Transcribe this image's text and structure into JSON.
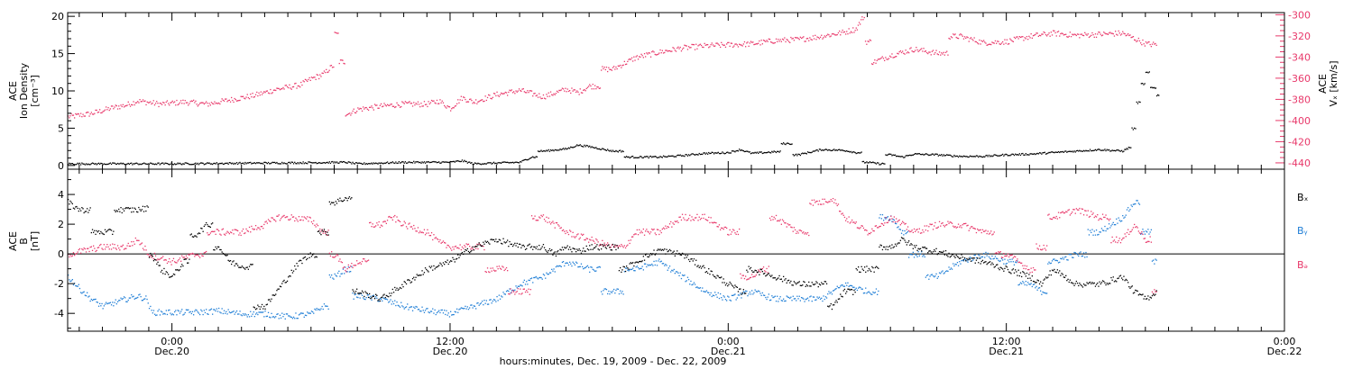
{
  "chart_data": [
    {
      "type": "scatter",
      "panel": "plasma",
      "ylabel_lines": [
        "ACE",
        "Ion Density",
        "[cm⁻³]"
      ],
      "y2label_lines": [
        "ACE",
        "Vₓ [km/s]"
      ],
      "ylim": [
        -0.5,
        20.5
      ],
      "yticks": [
        0,
        5,
        10,
        15,
        20
      ],
      "y2lim": [
        -446,
        -298
      ],
      "y2ticks": [
        -300,
        -320,
        -340,
        -360,
        -380,
        -400,
        -420,
        -440
      ],
      "x_unit": "hours since 00:00 Dec.19, 2009",
      "xlim": [
        19.5,
        72
      ],
      "series": [
        {
          "axis": "left",
          "color": "#000000",
          "x": [
            19.5,
            22,
            24,
            26,
            28,
            30,
            31.5,
            32,
            34,
            36,
            36.5,
            37,
            38,
            39,
            39.5,
            40,
            41,
            41.5,
            42,
            43,
            44,
            45,
            46,
            47,
            48,
            48.5,
            49,
            50,
            50.5,
            51,
            52,
            53,
            53.5,
            54,
            54.5,
            55,
            55.5,
            56,
            57,
            58,
            59,
            60,
            61,
            62,
            63,
            64,
            65,
            65.3,
            65.5,
            65.7,
            65.9,
            66.1,
            66.3,
            66.6
          ],
          "y": [
            0.3,
            0.3,
            0.3,
            0.35,
            0.4,
            0.45,
            0.5,
            0.3,
            0.5,
            0.5,
            0.7,
            0.3,
            0.4,
            0.5,
            1.2,
            2,
            2.3,
            2.8,
            2.6,
            2,
            1.2,
            1.2,
            1.4,
            1.7,
            1.8,
            2.2,
            1.7,
            1.9,
            3,
            1.5,
            2.2,
            2.1,
            1.8,
            0.5,
            0.3,
            1.5,
            1.2,
            1.6,
            1.5,
            1.3,
            1.3,
            1.5,
            1.6,
            1.8,
            2.0,
            2.2,
            2.0,
            2.5,
            5,
            8.5,
            11,
            12.5,
            10.5,
            9.5
          ]
        },
        {
          "axis": "right",
          "color": "#e8386a",
          "x": [
            19.5,
            20.5,
            21.5,
            22,
            22.5,
            23.5,
            24.5,
            25.5,
            26.5,
            27.5,
            28.5,
            29.5,
            30,
            30.5,
            30.9,
            31.1,
            31.3,
            31.6,
            32,
            33,
            34,
            35,
            35.5,
            36,
            36.5,
            37,
            38,
            39,
            39.5,
            40,
            41,
            41.5,
            42,
            43,
            44,
            45,
            46,
            47,
            48,
            49,
            50,
            51,
            52,
            53,
            53.5,
            53.8,
            54,
            54.3,
            55,
            56,
            57,
            58,
            59,
            60,
            61,
            62,
            63,
            64,
            65,
            65.5,
            66,
            66.5
          ],
          "y": [
            -396,
            -393,
            -387,
            -385,
            -381,
            -384,
            -382,
            -384,
            -380,
            -376,
            -370,
            -366,
            -360,
            -356,
            -348,
            -318,
            -344,
            -393,
            -389,
            -386,
            -384,
            -384,
            -381,
            -388,
            -378,
            -382,
            -375,
            -371,
            -374,
            -377,
            -370,
            -373,
            -367,
            -351,
            -340,
            -335,
            -331,
            -329,
            -328,
            -327,
            -324,
            -323,
            -320,
            -316,
            -313,
            -302,
            -325,
            -344,
            -338,
            -332,
            -336,
            -320,
            -326,
            -325,
            -320,
            -317,
            -319,
            -318,
            -317,
            -322,
            -327,
            -328
          ]
        }
      ]
    },
    {
      "type": "scatter",
      "panel": "magnetic-field",
      "ylabel_lines": [
        "ACE",
        "B",
        "[nT]"
      ],
      "ylim": [
        -5.2,
        5.7
      ],
      "yticks": [
        -4,
        -2,
        0,
        2,
        4
      ],
      "zero_line": 0,
      "x_unit": "hours since 00:00 Dec.19, 2009",
      "xlim": [
        19.5,
        72
      ],
      "series": [
        {
          "name": "Bₓ",
          "color": "#000000",
          "x": [
            19.5,
            20,
            21,
            22,
            22.5,
            22.9,
            23.1,
            23.5,
            24,
            24.5,
            25,
            25.5,
            26,
            26.5,
            27,
            28,
            28.5,
            29,
            29.5,
            30,
            30.5,
            31,
            31.5,
            32,
            33,
            34,
            35,
            36,
            37,
            38,
            39,
            40,
            40.5,
            41,
            41.5,
            42,
            43,
            43.5,
            44,
            45,
            46,
            47,
            48,
            48.5,
            49,
            50,
            51,
            52,
            52.5,
            53,
            54,
            55,
            55.5,
            56,
            57,
            57.5,
            58,
            59,
            60,
            61,
            61.5,
            62,
            63,
            64,
            65,
            65.5,
            66,
            66.5
          ],
          "y": [
            3.5,
            3,
            1.5,
            3,
            3,
            3.1,
            0,
            -1,
            -1.5,
            -0.5,
            1.3,
            2,
            0.5,
            -0.5,
            -0.8,
            -3.5,
            -2.5,
            -1.5,
            -0.5,
            0,
            1.5,
            3.5,
            3.8,
            -2.5,
            -3,
            -2,
            -1,
            -0.5,
            0.5,
            1,
            0.5,
            0.5,
            0,
            0.5,
            0.2,
            0.5,
            0.5,
            -1,
            -0.5,
            0.3,
            0,
            -1,
            -2,
            -2.5,
            -1,
            -1.5,
            -2,
            -2,
            -3.5,
            -2.5,
            -1,
            0.5,
            1,
            0.5,
            0.2,
            0,
            -0.2,
            -0.5,
            -1,
            -1.5,
            -2,
            -1,
            -2,
            -2,
            -1.5,
            -2.5,
            -3,
            -2.5
          ]
        },
        {
          "name": "Bᵧ",
          "color": "#1f7ed6",
          "x": [
            19.5,
            20,
            20.5,
            21,
            22,
            22.5,
            22.9,
            23.1,
            24,
            25,
            26,
            27,
            28,
            29,
            30,
            30.5,
            31,
            31.5,
            32,
            33,
            34,
            35,
            36,
            37,
            38,
            39,
            40,
            41,
            42,
            43,
            44,
            45,
            46,
            47,
            48,
            49,
            50,
            51,
            52,
            53,
            54,
            55,
            55.5,
            56,
            57,
            58,
            59,
            60,
            61,
            61.5,
            62,
            63,
            64,
            65,
            65.5,
            66,
            66.5
          ],
          "y": [
            -1.5,
            -2.3,
            -3,
            -3.5,
            -3,
            -2.8,
            -3,
            -3.9,
            -3.9,
            -3.9,
            -3.8,
            -4,
            -4,
            -4.2,
            -4,
            -3.5,
            -1.5,
            -1,
            -2.8,
            -3,
            -3.5,
            -3.8,
            -4,
            -3.5,
            -3,
            -2,
            -1.5,
            -0.5,
            -1,
            -2.5,
            -1,
            -0.5,
            -1.5,
            -2.5,
            -3,
            -2.5,
            -3,
            -3,
            -3,
            -2,
            -2.5,
            2.5,
            1.5,
            0,
            -1.5,
            -0.5,
            0,
            -0.5,
            -2,
            -2.5,
            -0.5,
            0,
            1.5,
            2.5,
            3.5,
            1.5,
            -0.5
          ]
        },
        {
          "name": "Bₔ",
          "color": "#e8386a",
          "x": [
            19.5,
            20,
            21,
            22,
            22.5,
            23,
            24,
            25,
            26,
            27,
            28,
            28.5,
            29,
            30,
            30.5,
            31,
            31.5,
            32,
            33,
            33.5,
            34,
            35,
            35.5,
            36,
            37,
            38,
            39,
            40,
            41,
            42,
            43,
            43.5,
            44,
            45,
            46,
            47,
            48,
            49,
            49.5,
            50,
            51,
            52,
            52.5,
            53,
            54,
            55,
            56,
            57,
            58,
            59,
            60,
            61,
            61.5,
            62,
            63,
            64,
            65,
            65.5,
            66,
            66.5
          ],
          "y": [
            0,
            0.2,
            0.5,
            0.5,
            1,
            0,
            -0.5,
            0,
            1.5,
            1.5,
            2,
            2.5,
            2.5,
            2.3,
            1.5,
            0,
            -1,
            -0.5,
            2,
            2.5,
            2,
            1.5,
            0.8,
            0.5,
            0.5,
            -1,
            -2.5,
            2.5,
            1.5,
            1,
            0.5,
            0.5,
            1.5,
            1.5,
            2.5,
            2.5,
            1.5,
            -1.5,
            -1,
            2.5,
            1.5,
            3.5,
            3.8,
            2.5,
            1.5,
            2.5,
            1.5,
            2,
            2,
            1.5,
            0,
            -1,
            0.5,
            2.5,
            3,
            2.5,
            1,
            2,
            1,
            -2.5
          ]
        }
      ]
    }
  ],
  "x_axis": {
    "major_ticks": [
      24,
      36,
      48,
      60,
      72
    ],
    "minor_tick_step_hours": 1,
    "time_labels": [
      "0:00",
      "12:00",
      "0:00",
      "12:00",
      "0:00"
    ],
    "date_labels": [
      "Dec.20",
      "Dec.20",
      "Dec.21",
      "Dec.21",
      "Dec.22"
    ],
    "xlabel": "hours:minutes, Dec. 19, 2009 - Dec. 22, 2009"
  },
  "colors": {
    "black": "#000000",
    "pink": "#e8386a",
    "blue": "#1f7ed6"
  }
}
